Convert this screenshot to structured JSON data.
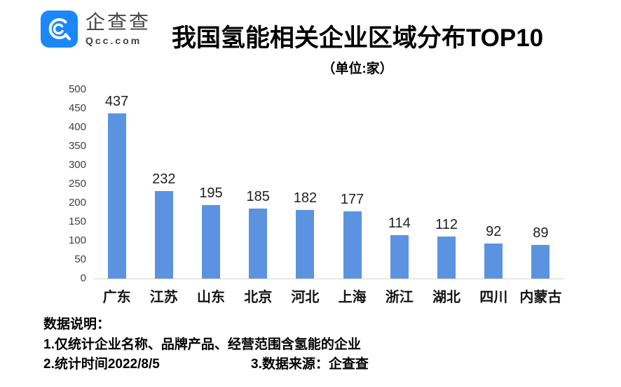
{
  "brand": {
    "name": "企查查",
    "domain": "Qcc.com",
    "logo_color": "#1b87f9"
  },
  "header": {
    "title": "我国氢能相关企业区域分布TOP10",
    "subtitle": "（单位:家）"
  },
  "chart_data": {
    "type": "bar",
    "title": "我国氢能相关企业区域分布TOP10",
    "unit_label": "（单位:家）",
    "categories": [
      "广东",
      "江苏",
      "山东",
      "北京",
      "河北",
      "上海",
      "浙江",
      "湖北",
      "四川",
      "内蒙古"
    ],
    "values": [
      437,
      232,
      195,
      185,
      182,
      177,
      114,
      112,
      92,
      89
    ],
    "xlabel": "",
    "ylabel": "",
    "ylim": [
      0,
      500
    ],
    "ytick_step": 50,
    "bar_color": "#5b93e1",
    "grid": false,
    "legend": false,
    "data_labels": true
  },
  "footer": {
    "heading": "数据说明：",
    "note1": "1.仅统计企业名称、品牌产品、经营范围含氢能的企业",
    "note2": "2.统计时间2022/8/5",
    "note3": "3.数据来源：企查查"
  }
}
